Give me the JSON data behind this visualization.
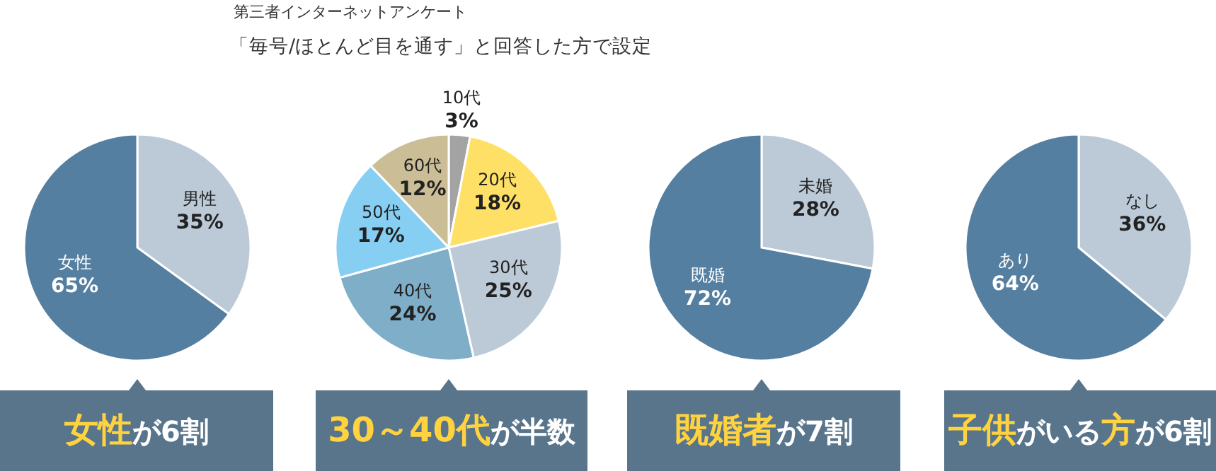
{
  "chart_data": [
    {
      "type": "other",
      "title": "第三者インターネットアンケート",
      "subtitle": "「毎号/ほとんど目を通す」と回答した方で設定"
    },
    {
      "type": "pie",
      "categories": [
        "男性",
        "女性"
      ],
      "values": [
        35,
        65
      ],
      "value_labels": [
        "35%",
        "65%"
      ],
      "colors": [
        "#bccad8",
        "#557fa1"
      ],
      "annotations": [
        "女性",
        "が6割"
      ]
    },
    {
      "type": "pie",
      "categories": [
        "10代",
        "20代",
        "30代",
        "40代",
        "50代",
        "60代"
      ],
      "values": [
        3,
        18,
        25,
        24,
        17,
        12
      ],
      "value_labels": [
        "3%",
        "18%",
        "25%",
        "24%",
        "17%",
        "12%"
      ],
      "colors": [
        "#a3a3a3",
        "#ffe066",
        "#bccad8",
        "#7eaec8",
        "#86cff3",
        "#cbbd95"
      ],
      "annotations": [
        "30～40代",
        "が半数"
      ]
    },
    {
      "type": "pie",
      "categories": [
        "未婚",
        "既婚"
      ],
      "values": [
        28,
        72
      ],
      "value_labels": [
        "28%",
        "72%"
      ],
      "colors": [
        "#bccad8",
        "#557fa1"
      ],
      "annotations": [
        "既婚者",
        "が7割"
      ]
    },
    {
      "type": "pie",
      "categories": [
        "なし",
        "あり"
      ],
      "values": [
        36,
        64
      ],
      "value_labels": [
        "36%",
        "64%"
      ],
      "colors": [
        "#bccad8",
        "#557fa1"
      ],
      "annotations": [
        "子供",
        "がいる",
        "方",
        "が6割"
      ]
    }
  ]
}
